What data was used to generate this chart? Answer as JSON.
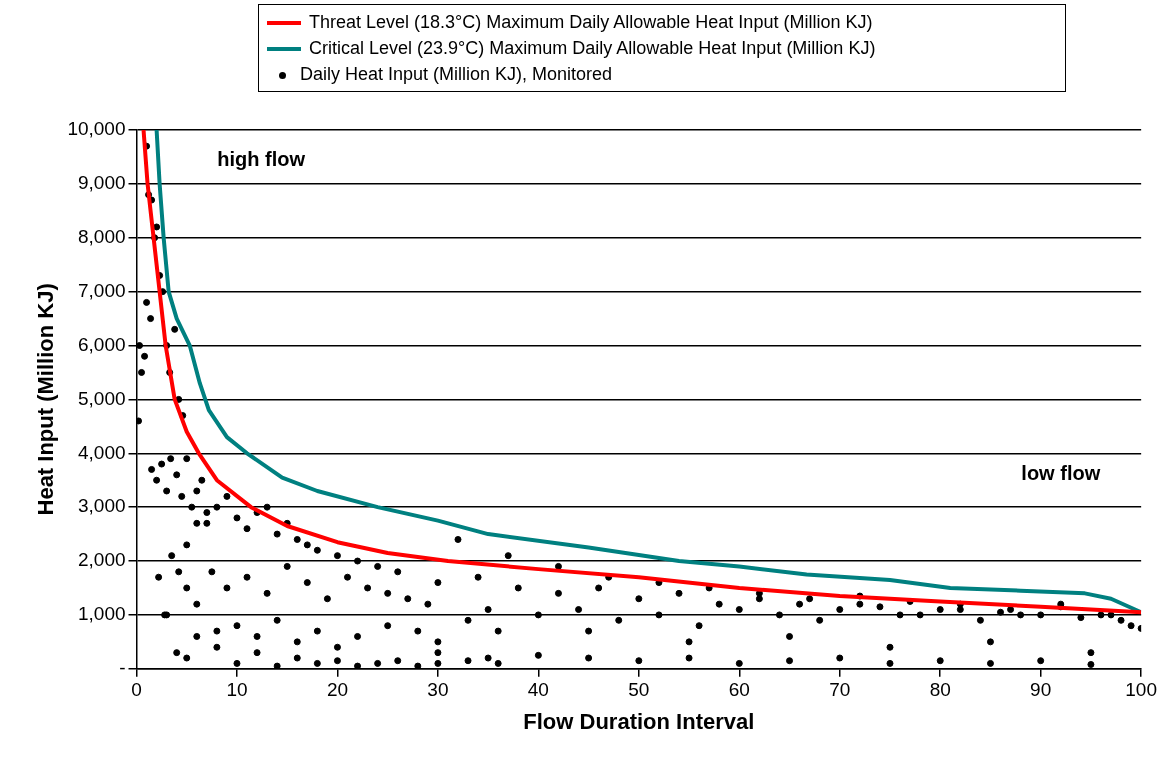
{
  "chart_data": {
    "type": "scatter",
    "xlabel": "Flow Duration Interval",
    "ylabel": "Heat Input (Million KJ)",
    "xlim": [
      0,
      100
    ],
    "xticks": [
      0,
      10,
      20,
      30,
      40,
      50,
      60,
      70,
      80,
      90,
      100
    ],
    "ylim": [
      0,
      10000
    ],
    "yticks": [
      {
        "value": 0,
        "label": "-"
      },
      {
        "value": 1000,
        "label": "1,000"
      },
      {
        "value": 2000,
        "label": "2,000"
      },
      {
        "value": 3000,
        "label": "3,000"
      },
      {
        "value": 4000,
        "label": "4,000"
      },
      {
        "value": 5000,
        "label": "5,000"
      },
      {
        "value": 6000,
        "label": "6,000"
      },
      {
        "value": 7000,
        "label": "7,000"
      },
      {
        "value": 8000,
        "label": "8,000"
      },
      {
        "value": 9000,
        "label": "9,000"
      },
      {
        "value": 10000,
        "label": "10,000"
      }
    ],
    "grid": "y",
    "legend": "top",
    "annotations": [
      "high flow",
      "low flow"
    ],
    "series": [
      {
        "name": "Threat Level (18.3°C) Maximum Daily Allowable Heat Input (Million KJ)",
        "type": "line",
        "color": "#ff0000",
        "marker": "none",
        "x": [
          0.7,
          1.1,
          1.7,
          2.3,
          2.9,
          3.8,
          5,
          6.2,
          8,
          11.4,
          15,
          20,
          25,
          31,
          40,
          50,
          60,
          70,
          80,
          90,
          95,
          100
        ],
        "values": [
          10000,
          9000,
          8000,
          7000,
          6000,
          5000,
          4400,
          4000,
          3500,
          3000,
          2650,
          2350,
          2150,
          2000,
          1850,
          1700,
          1500,
          1350,
          1250,
          1150,
          1100,
          1050
        ]
      },
      {
        "name": "Critical Level (23.9°C) Maximum Daily Allowable Heat Input (Million KJ)",
        "type": "line",
        "color": "#008080",
        "marker": "none",
        "x": [
          2,
          2.3,
          2.7,
          3.2,
          4,
          5.3,
          6.3,
          7.2,
          9,
          11,
          14.5,
          18,
          24,
          30,
          35,
          45,
          54,
          60,
          66.7,
          75,
          81,
          88,
          94.4,
          97,
          100
        ],
        "values": [
          10000,
          9000,
          8000,
          7000,
          6500,
          6000,
          5300,
          4800,
          4300,
          4000,
          3550,
          3300,
          3000,
          2750,
          2500,
          2250,
          2000,
          1900,
          1750,
          1650,
          1500,
          1450,
          1400,
          1300,
          1050
        ]
      },
      {
        "name": "Daily Heat Input (Million KJ), Monitored",
        "type": "scatter",
        "color": "#000000",
        "marker": "circle",
        "x": [
          1,
          1.2,
          1.5,
          1.8,
          2,
          2.3,
          0.3,
          0.5,
          0.8,
          1,
          1.4,
          0.2,
          2.6,
          3,
          3.3,
          3.8,
          4.2,
          4.6,
          1.5,
          2,
          2.5,
          3,
          3.4,
          4,
          4.5,
          5,
          5.5,
          6,
          6.5,
          7,
          2.2,
          2.8,
          3.5,
          4.2,
          5,
          6,
          7,
          8,
          9,
          10,
          11,
          12,
          13,
          14,
          15,
          16,
          17,
          18,
          20,
          22,
          24,
          5,
          6,
          7.5,
          9,
          11,
          13,
          15,
          17,
          19,
          21,
          23,
          25,
          27,
          29,
          8,
          10,
          12,
          14,
          16,
          18,
          20,
          22,
          25,
          28,
          30,
          33,
          36,
          40,
          44,
          48,
          52,
          56,
          60,
          64,
          68,
          72,
          76,
          80,
          84,
          88,
          92,
          96,
          99,
          100,
          26,
          30,
          34,
          38,
          42,
          46,
          50,
          54,
          58,
          62,
          66,
          70,
          74,
          78,
          82,
          86,
          90,
          94,
          98,
          30,
          35,
          40,
          45,
          50,
          55,
          60,
          65,
          70,
          75,
          80,
          85,
          90,
          95,
          35,
          45,
          55,
          65,
          75,
          85,
          95,
          32,
          37,
          42,
          47,
          52,
          57,
          62,
          67,
          72,
          77,
          82,
          87,
          92,
          97,
          3,
          4,
          5,
          6,
          8,
          10,
          12,
          14,
          16,
          18,
          20,
          22,
          24,
          26,
          28,
          30,
          33,
          36
        ],
        "values": [
          9700,
          8800,
          8700,
          8000,
          8200,
          7300,
          6000,
          5500,
          5800,
          6800,
          6500,
          4600,
          7000,
          6000,
          5500,
          6300,
          5000,
          4700,
          3700,
          3500,
          3800,
          3300,
          3900,
          3600,
          3200,
          3900,
          3000,
          3300,
          3500,
          2700,
          1700,
          1000,
          2100,
          1800,
          2300,
          2700,
          2900,
          3000,
          3200,
          2800,
          2600,
          2900,
          3000,
          2500,
          2700,
          2400,
          2300,
          2200,
          2100,
          2000,
          1900,
          1500,
          1200,
          1800,
          1500,
          1700,
          1400,
          1900,
          1600,
          1300,
          1700,
          1500,
          1400,
          1300,
          1200,
          700,
          800,
          600,
          900,
          500,
          700,
          400,
          600,
          800,
          700,
          500,
          900,
          700,
          1000,
          1100,
          900,
          1000,
          800,
          1100,
          1000,
          900,
          1200,
          1000,
          1100,
          900,
          1000,
          1200,
          1000,
          800,
          750,
          1800,
          1600,
          1700,
          1500,
          1400,
          1500,
          1300,
          1400,
          1200,
          1300,
          1200,
          1100,
          1150,
          1000,
          1100,
          1050,
          1000,
          950,
          900,
          300,
          200,
          250,
          200,
          150,
          200,
          100,
          150,
          200,
          100,
          150,
          100,
          150,
          80,
          1100,
          700,
          500,
          600,
          400,
          500,
          300,
          2400,
          2100,
          1900,
          1700,
          1600,
          1500,
          1400,
          1300,
          1350,
          1250,
          1200,
          1100,
          1150,
          1000,
          1000,
          300,
          200,
          600,
          400,
          100,
          300,
          50,
          200,
          100,
          150,
          50,
          100,
          150,
          50,
          100,
          150,
          100
        ]
      }
    ]
  }
}
